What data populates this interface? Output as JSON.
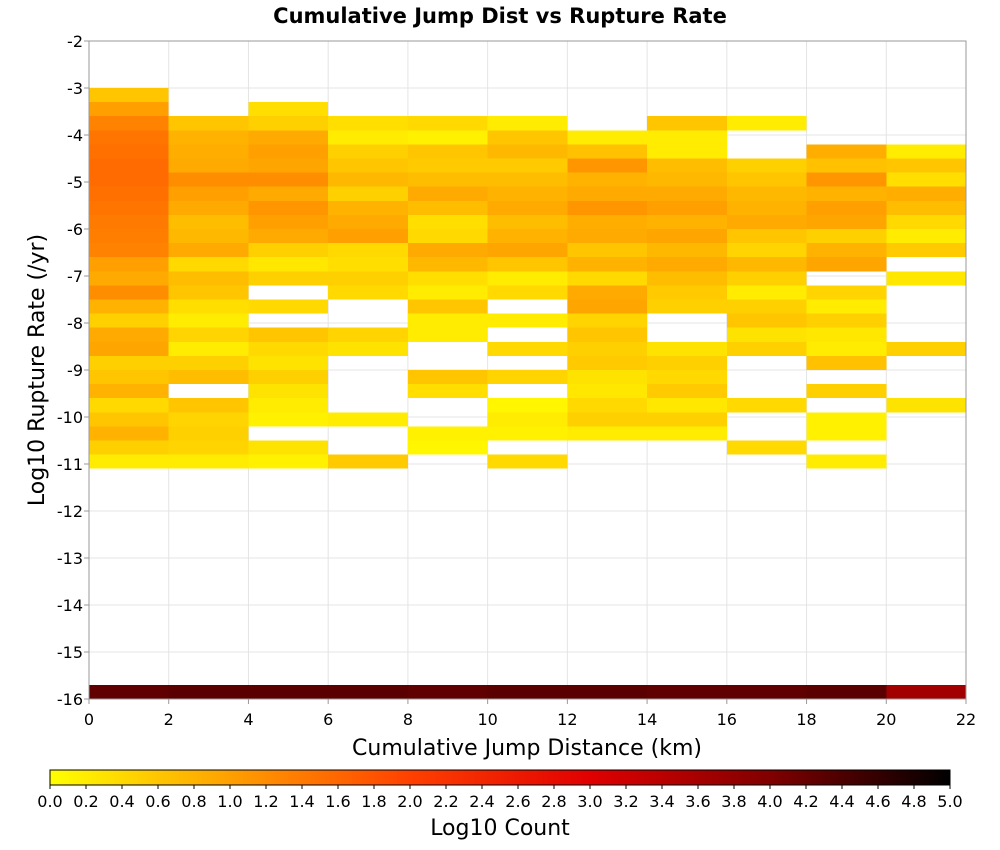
{
  "chart_data": {
    "type": "heatmap",
    "title": "Cumulative Jump Dist vs Rupture Rate",
    "xlabel": "Cumulative Jump Distance (km)",
    "ylabel": "Log10 Rupture Rate (/yr)",
    "xlim": [
      0,
      22
    ],
    "ylim": [
      -16,
      -2
    ],
    "x_ticks": [
      "0",
      "2",
      "4",
      "6",
      "8",
      "10",
      "12",
      "14",
      "16",
      "18",
      "20",
      "22"
    ],
    "y_ticks": [
      "-2",
      "-3",
      "-4",
      "-5",
      "-6",
      "-7",
      "-8",
      "-9",
      "-10",
      "-11",
      "-12",
      "-13",
      "-14",
      "-15",
      "-16"
    ],
    "bin_width_x": 2,
    "bin_height_y": 0.3,
    "grid": true,
    "colorbar": {
      "label": "Log10 Count",
      "min": 0,
      "max": 5,
      "ticks": [
        "0.0",
        "0.2",
        "0.4",
        "0.6",
        "0.8",
        "1.0",
        "1.2",
        "1.4",
        "1.6",
        "1.8",
        "2.0",
        "2.2",
        "2.4",
        "2.6",
        "2.8",
        "3.0",
        "3.2",
        "3.4",
        "3.6",
        "3.8",
        "4.0",
        "4.2",
        "4.4",
        "4.6",
        "4.8",
        "5.0"
      ],
      "colors": [
        "#ffff00",
        "#ffa000",
        "#ff4000",
        "#e00000",
        "#800000",
        "#000000"
      ]
    },
    "columns": [
      {
        "x": 0,
        "cells": [
          {
            "y": -3.3,
            "v": 0.6
          },
          {
            "y": -3.6,
            "v": 1.0
          },
          {
            "y": -3.9,
            "v": 1.3
          },
          {
            "y": -4.2,
            "v": 1.45
          },
          {
            "y": -4.5,
            "v": 1.5
          },
          {
            "y": -4.8,
            "v": 1.55
          },
          {
            "y": -5.1,
            "v": 1.55
          },
          {
            "y": -5.4,
            "v": 1.5
          },
          {
            "y": -5.7,
            "v": 1.45
          },
          {
            "y": -6.0,
            "v": 1.4
          },
          {
            "y": -6.3,
            "v": 1.35
          },
          {
            "y": -6.6,
            "v": 1.3
          },
          {
            "y": -6.9,
            "v": 1.0
          },
          {
            "y": -7.2,
            "v": 0.9
          },
          {
            "y": -7.5,
            "v": 1.2
          },
          {
            "y": -7.8,
            "v": 0.8
          },
          {
            "y": -8.1,
            "v": 0.5
          },
          {
            "y": -8.4,
            "v": 0.9
          },
          {
            "y": -8.7,
            "v": 0.95
          },
          {
            "y": -9.0,
            "v": 0.5
          },
          {
            "y": -9.3,
            "v": 0.6
          },
          {
            "y": -9.6,
            "v": 0.8
          },
          {
            "y": -9.9,
            "v": 0.4
          },
          {
            "y": -10.2,
            "v": 0.6
          },
          {
            "y": -10.5,
            "v": 0.8
          },
          {
            "y": -10.8,
            "v": 0.5
          },
          {
            "y": -11.1,
            "v": 0.2
          }
        ]
      },
      {
        "x": 2,
        "cells": [
          {
            "y": -3.9,
            "v": 0.6
          },
          {
            "y": -4.2,
            "v": 0.8
          },
          {
            "y": -4.5,
            "v": 0.85
          },
          {
            "y": -4.8,
            "v": 0.9
          },
          {
            "y": -5.1,
            "v": 1.2
          },
          {
            "y": -5.4,
            "v": 1.0
          },
          {
            "y": -5.7,
            "v": 0.9
          },
          {
            "y": -6.0,
            "v": 0.7
          },
          {
            "y": -6.3,
            "v": 0.75
          },
          {
            "y": -6.6,
            "v": 0.9
          },
          {
            "y": -6.9,
            "v": 0.4
          },
          {
            "y": -7.2,
            "v": 0.7
          },
          {
            "y": -7.5,
            "v": 0.6
          },
          {
            "y": -7.8,
            "v": 0.35
          },
          {
            "y": -8.1,
            "v": 0.2
          },
          {
            "y": -8.4,
            "v": 0.45
          },
          {
            "y": -8.7,
            "v": 0.2
          },
          {
            "y": -9.0,
            "v": 0.5
          },
          {
            "y": -9.3,
            "v": 0.7
          },
          {
            "y": -9.9,
            "v": 0.6
          },
          {
            "y": -10.2,
            "v": 0.45
          },
          {
            "y": -10.5,
            "v": 0.5
          },
          {
            "y": -10.8,
            "v": 0.45
          },
          {
            "y": -11.1,
            "v": 0.2
          }
        ]
      },
      {
        "x": 4,
        "cells": [
          {
            "y": -3.6,
            "v": 0.35
          },
          {
            "y": -3.9,
            "v": 0.5
          },
          {
            "y": -4.2,
            "v": 0.9
          },
          {
            "y": -4.5,
            "v": 1.0
          },
          {
            "y": -4.8,
            "v": 0.95
          },
          {
            "y": -5.1,
            "v": 1.2
          },
          {
            "y": -5.4,
            "v": 0.9
          },
          {
            "y": -5.7,
            "v": 1.1
          },
          {
            "y": -6.0,
            "v": 1.0
          },
          {
            "y": -6.3,
            "v": 0.9
          },
          {
            "y": -6.6,
            "v": 0.5
          },
          {
            "y": -6.9,
            "v": 0.25
          },
          {
            "y": -7.2,
            "v": 0.5
          },
          {
            "y": -7.8,
            "v": 0.4
          },
          {
            "y": -8.4,
            "v": 0.6
          },
          {
            "y": -8.7,
            "v": 0.4
          },
          {
            "y": -9.0,
            "v": 0.3
          },
          {
            "y": -9.3,
            "v": 0.5
          },
          {
            "y": -9.6,
            "v": 0.3
          },
          {
            "y": -9.9,
            "v": 0.2
          },
          {
            "y": -10.2,
            "v": 0.15
          },
          {
            "y": -10.8,
            "v": 0.3
          },
          {
            "y": -11.1,
            "v": 0.15
          }
        ]
      },
      {
        "x": 6,
        "cells": [
          {
            "y": -3.9,
            "v": 0.35
          },
          {
            "y": -4.2,
            "v": 0.2
          },
          {
            "y": -4.5,
            "v": 0.5
          },
          {
            "y": -4.8,
            "v": 0.6
          },
          {
            "y": -5.1,
            "v": 0.75
          },
          {
            "y": -5.4,
            "v": 0.5
          },
          {
            "y": -5.7,
            "v": 0.8
          },
          {
            "y": -6.0,
            "v": 0.9
          },
          {
            "y": -6.3,
            "v": 1.0
          },
          {
            "y": -6.6,
            "v": 0.4
          },
          {
            "y": -6.9,
            "v": 0.35
          },
          {
            "y": -7.2,
            "v": 0.5
          },
          {
            "y": -7.5,
            "v": 0.4
          },
          {
            "y": -8.4,
            "v": 0.45
          },
          {
            "y": -8.7,
            "v": 0.3
          },
          {
            "y": -10.2,
            "v": 0.2
          },
          {
            "y": -11.1,
            "v": 0.55
          }
        ]
      },
      {
        "x": 8,
        "cells": [
          {
            "y": -3.9,
            "v": 0.4
          },
          {
            "y": -4.2,
            "v": 0.15
          },
          {
            "y": -4.5,
            "v": 0.6
          },
          {
            "y": -4.8,
            "v": 0.55
          },
          {
            "y": -5.1,
            "v": 0.7
          },
          {
            "y": -5.4,
            "v": 0.9
          },
          {
            "y": -5.7,
            "v": 0.7
          },
          {
            "y": -6.0,
            "v": 0.35
          },
          {
            "y": -6.3,
            "v": 0.4
          },
          {
            "y": -6.6,
            "v": 0.9
          },
          {
            "y": -6.9,
            "v": 0.75
          },
          {
            "y": -7.2,
            "v": 0.35
          },
          {
            "y": -7.5,
            "v": 0.2
          },
          {
            "y": -7.8,
            "v": 0.6
          },
          {
            "y": -8.1,
            "v": 0.2
          },
          {
            "y": -8.4,
            "v": 0.2
          },
          {
            "y": -9.3,
            "v": 0.6
          },
          {
            "y": -9.6,
            "v": 0.35
          },
          {
            "y": -10.5,
            "v": 0.15
          },
          {
            "y": -10.8,
            "v": 0.1
          }
        ]
      },
      {
        "x": 10,
        "cells": [
          {
            "y": -3.9,
            "v": 0.2
          },
          {
            "y": -4.2,
            "v": 0.6
          },
          {
            "y": -4.5,
            "v": 0.75
          },
          {
            "y": -4.8,
            "v": 0.55
          },
          {
            "y": -5.1,
            "v": 0.7
          },
          {
            "y": -5.4,
            "v": 0.8
          },
          {
            "y": -5.7,
            "v": 0.9
          },
          {
            "y": -6.0,
            "v": 0.7
          },
          {
            "y": -6.3,
            "v": 0.8
          },
          {
            "y": -6.6,
            "v": 0.95
          },
          {
            "y": -6.9,
            "v": 0.6
          },
          {
            "y": -7.2,
            "v": 0.2
          },
          {
            "y": -7.5,
            "v": 0.4
          },
          {
            "y": -8.1,
            "v": 0.2
          },
          {
            "y": -8.7,
            "v": 0.4
          },
          {
            "y": -9.3,
            "v": 0.45
          },
          {
            "y": -9.9,
            "v": 0.1
          },
          {
            "y": -10.2,
            "v": 0.2
          },
          {
            "y": -10.5,
            "v": 0.15
          },
          {
            "y": -11.1,
            "v": 0.4
          }
        ]
      },
      {
        "x": 12,
        "cells": [
          {
            "y": -4.2,
            "v": 0.2
          },
          {
            "y": -4.5,
            "v": 0.65
          },
          {
            "y": -4.8,
            "v": 1.1
          },
          {
            "y": -5.1,
            "v": 0.8
          },
          {
            "y": -5.4,
            "v": 0.9
          },
          {
            "y": -5.7,
            "v": 1.1
          },
          {
            "y": -6.0,
            "v": 0.85
          },
          {
            "y": -6.3,
            "v": 0.9
          },
          {
            "y": -6.6,
            "v": 0.6
          },
          {
            "y": -6.9,
            "v": 0.8
          },
          {
            "y": -7.2,
            "v": 0.4
          },
          {
            "y": -7.5,
            "v": 0.9
          },
          {
            "y": -7.8,
            "v": 0.95
          },
          {
            "y": -8.1,
            "v": 0.45
          },
          {
            "y": -8.4,
            "v": 0.6
          },
          {
            "y": -8.7,
            "v": 0.5
          },
          {
            "y": -9.0,
            "v": 0.55
          },
          {
            "y": -9.3,
            "v": 0.3
          },
          {
            "y": -9.6,
            "v": 0.25
          },
          {
            "y": -9.9,
            "v": 0.4
          },
          {
            "y": -10.2,
            "v": 0.5
          },
          {
            "y": -10.5,
            "v": 0.2
          }
        ]
      },
      {
        "x": 14,
        "cells": [
          {
            "y": -3.9,
            "v": 0.6
          },
          {
            "y": -4.2,
            "v": 0.2
          },
          {
            "y": -4.5,
            "v": 0.2
          },
          {
            "y": -4.8,
            "v": 0.7
          },
          {
            "y": -5.1,
            "v": 0.75
          },
          {
            "y": -5.4,
            "v": 0.9
          },
          {
            "y": -5.7,
            "v": 1.0
          },
          {
            "y": -6.0,
            "v": 0.8
          },
          {
            "y": -6.3,
            "v": 0.95
          },
          {
            "y": -6.6,
            "v": 0.75
          },
          {
            "y": -6.9,
            "v": 0.9
          },
          {
            "y": -7.2,
            "v": 0.7
          },
          {
            "y": -7.5,
            "v": 0.55
          },
          {
            "y": -7.8,
            "v": 0.5
          },
          {
            "y": -8.7,
            "v": 0.3
          },
          {
            "y": -9.0,
            "v": 0.5
          },
          {
            "y": -9.3,
            "v": 0.4
          },
          {
            "y": -9.6,
            "v": 0.55
          },
          {
            "y": -9.9,
            "v": 0.25
          },
          {
            "y": -10.2,
            "v": 0.5
          },
          {
            "y": -10.5,
            "v": 0.2
          }
        ]
      },
      {
        "x": 16,
        "cells": [
          {
            "y": -3.9,
            "v": 0.2
          },
          {
            "y": -4.8,
            "v": 0.5
          },
          {
            "y": -5.1,
            "v": 0.6
          },
          {
            "y": -5.4,
            "v": 0.75
          },
          {
            "y": -5.7,
            "v": 0.8
          },
          {
            "y": -6.0,
            "v": 0.9
          },
          {
            "y": -6.3,
            "v": 0.6
          },
          {
            "y": -6.6,
            "v": 0.45
          },
          {
            "y": -6.9,
            "v": 0.75
          },
          {
            "y": -7.2,
            "v": 0.5
          },
          {
            "y": -7.5,
            "v": 0.2
          },
          {
            "y": -7.8,
            "v": 0.5
          },
          {
            "y": -8.1,
            "v": 0.6
          },
          {
            "y": -8.4,
            "v": 0.3
          },
          {
            "y": -8.7,
            "v": 0.5
          },
          {
            "y": -9.9,
            "v": 0.4
          },
          {
            "y": -10.8,
            "v": 0.4
          }
        ]
      },
      {
        "x": 18,
        "cells": [
          {
            "y": -4.5,
            "v": 0.85
          },
          {
            "y": -4.8,
            "v": 0.65
          },
          {
            "y": -5.1,
            "v": 1.1
          },
          {
            "y": -5.4,
            "v": 0.8
          },
          {
            "y": -5.7,
            "v": 1.0
          },
          {
            "y": -6.0,
            "v": 0.95
          },
          {
            "y": -6.3,
            "v": 0.5
          },
          {
            "y": -6.6,
            "v": 0.8
          },
          {
            "y": -6.9,
            "v": 0.95
          },
          {
            "y": -7.5,
            "v": 0.45
          },
          {
            "y": -7.8,
            "v": 0.2
          },
          {
            "y": -8.1,
            "v": 0.5
          },
          {
            "y": -8.4,
            "v": 0.25
          },
          {
            "y": -8.7,
            "v": 0.2
          },
          {
            "y": -9.0,
            "v": 0.65
          },
          {
            "y": -9.6,
            "v": 0.5
          },
          {
            "y": -10.2,
            "v": 0.15
          },
          {
            "y": -10.5,
            "v": 0.15
          },
          {
            "y": -11.1,
            "v": 0.2
          }
        ]
      },
      {
        "x": 20,
        "cells": [
          {
            "y": -4.5,
            "v": 0.2
          },
          {
            "y": -4.8,
            "v": 0.6
          },
          {
            "y": -5.1,
            "v": 0.35
          },
          {
            "y": -5.4,
            "v": 0.85
          },
          {
            "y": -5.7,
            "v": 0.7
          },
          {
            "y": -6.0,
            "v": 0.4
          },
          {
            "y": -6.3,
            "v": 0.2
          },
          {
            "y": -6.6,
            "v": 0.55
          },
          {
            "y": -7.2,
            "v": 0.25
          },
          {
            "y": -8.7,
            "v": 0.5
          },
          {
            "y": -9.9,
            "v": 0.3
          }
        ]
      }
    ],
    "bottom_row": {
      "y": -16.0,
      "cells": [
        {
          "x": 0,
          "v": 4.25
        },
        {
          "x": 2,
          "v": 4.3
        },
        {
          "x": 4,
          "v": 4.3
        },
        {
          "x": 6,
          "v": 4.3
        },
        {
          "x": 8,
          "v": 4.25
        },
        {
          "x": 10,
          "v": 4.3
        },
        {
          "x": 12,
          "v": 4.3
        },
        {
          "x": 14,
          "v": 4.25
        },
        {
          "x": 16,
          "v": 4.25
        },
        {
          "x": 18,
          "v": 4.3
        },
        {
          "x": 20,
          "v": 3.65
        }
      ]
    }
  }
}
